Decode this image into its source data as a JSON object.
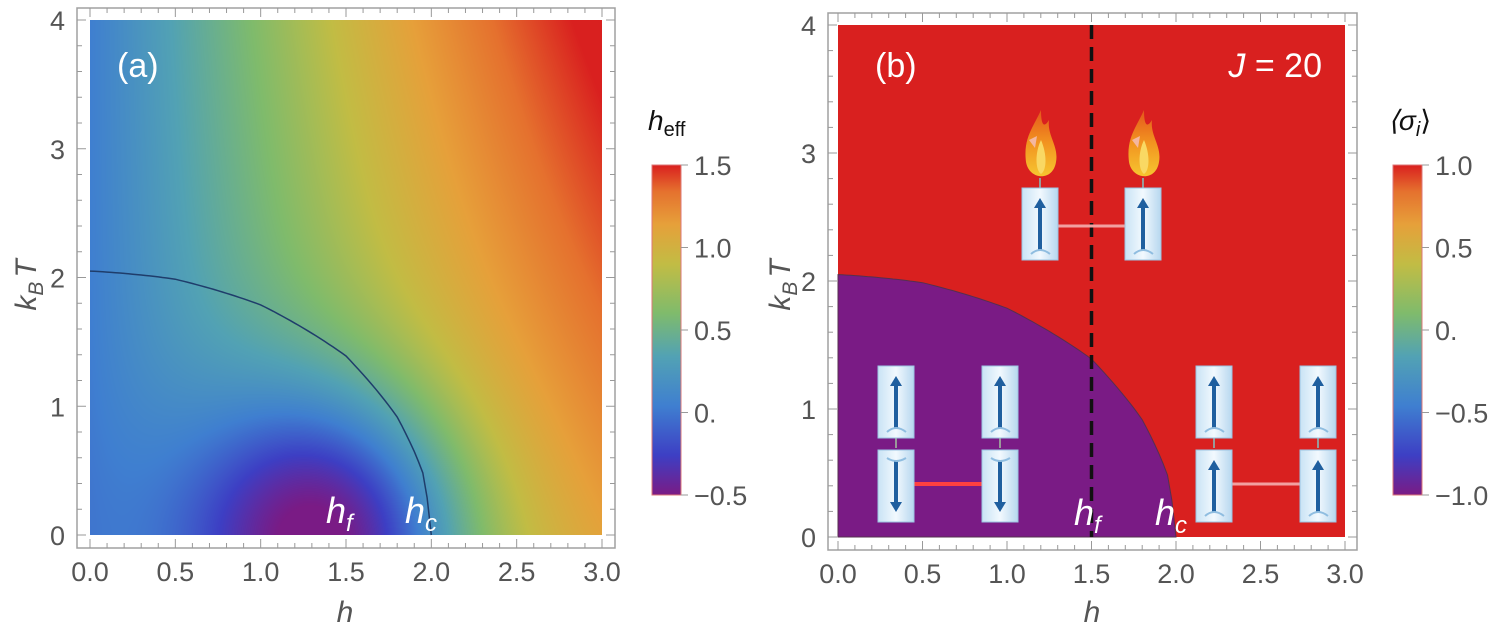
{
  "chart_data": [
    {
      "type": "heatmap",
      "panel_label": "(a)",
      "xlabel": "h",
      "ylabel": {
        "main": "k",
        "sub": "B",
        "tail": "T"
      },
      "xlim": [
        0,
        3
      ],
      "ylim": [
        0,
        4
      ],
      "xticks": [
        "0.0",
        "0.5",
        "1.0",
        "1.5",
        "2.0",
        "2.5",
        "3.0"
      ],
      "yticks": [
        "0",
        "1",
        "2",
        "3",
        "4"
      ],
      "colorbar": {
        "title": {
          "main": "h",
          "sub": "eff"
        },
        "range": [
          -0.5,
          1.5
        ],
        "ticks": [
          "1.5",
          "1.0",
          "0.5",
          "0.",
          "−0.5"
        ],
        "colormap": [
          "#7a1b85",
          "#3d3fc4",
          "#3f7fd0",
          "#52a2b4",
          "#7fbb6c",
          "#c2bc44",
          "#e6a03a",
          "#e5712e",
          "#d9201f"
        ]
      },
      "boundary_curve": {
        "h": [
          0,
          0.5,
          1.0,
          1.5,
          1.8,
          1.95,
          2.0
        ],
        "kBT": [
          2.05,
          1.98,
          1.78,
          1.4,
          0.92,
          0.5,
          0
        ]
      },
      "annotations": [
        {
          "main": "h",
          "sub": "f",
          "h": 1.5
        },
        {
          "main": "h",
          "sub": "c",
          "h": 2.0
        }
      ],
      "grid": false
    },
    {
      "type": "heatmap",
      "panel_label": "(b)",
      "parameter": {
        "main": "J",
        "tail": " = 20"
      },
      "xlabel": "h",
      "ylabel": {
        "main": "k",
        "sub": "B",
        "tail": "T"
      },
      "xlim": [
        0,
        3
      ],
      "ylim": [
        0,
        4
      ],
      "xticks": [
        "0.0",
        "0.5",
        "1.0",
        "1.5",
        "2.0",
        "2.5",
        "3.0"
      ],
      "yticks": [
        "0",
        "1",
        "2",
        "3",
        "4"
      ],
      "colorbar": {
        "title": {
          "main": "⟨σ",
          "sub": "i",
          "tail": "⟩"
        },
        "range": [
          -1.0,
          1.0
        ],
        "ticks": [
          "1.0",
          "0.5",
          "0.",
          "−0.5",
          "−1.0"
        ],
        "colormap": [
          "#7a1b85",
          "#3d3fc4",
          "#3f7fd0",
          "#52a2b4",
          "#7fbb6c",
          "#c2bc44",
          "#e6a03a",
          "#e5712e",
          "#d9201f"
        ]
      },
      "regions": [
        {
          "value": -1.0,
          "color": "#7a1b85",
          "where": "inside boundary"
        },
        {
          "value": 1.0,
          "color": "#d9201f",
          "where": "outside boundary"
        }
      ],
      "boundary_curve": {
        "h": [
          0,
          0.5,
          1.0,
          1.5,
          1.8,
          1.95,
          2.0
        ],
        "kBT": [
          2.05,
          1.98,
          1.78,
          1.4,
          0.92,
          0.5,
          0
        ]
      },
      "dashed_line": {
        "h": 1.5,
        "color": "#111111"
      },
      "annotations": [
        {
          "main": "h",
          "sub": "f",
          "h": 1.5
        },
        {
          "main": "h",
          "sub": "c",
          "h": 2.0
        }
      ],
      "icons": [
        "flame-icon",
        "spin-up-icon",
        "spin-down-icon"
      ],
      "grid": false
    }
  ]
}
